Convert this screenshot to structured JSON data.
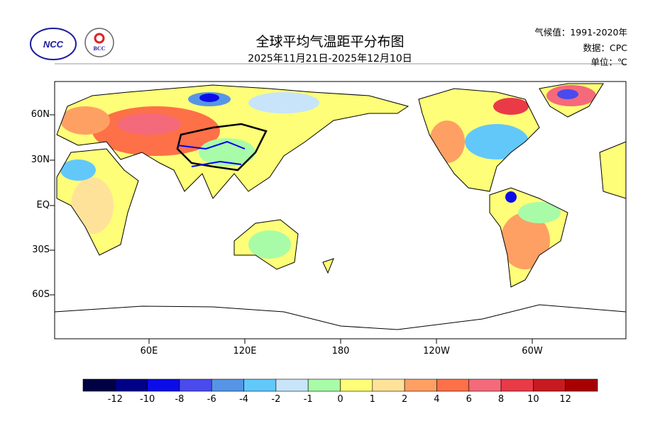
{
  "header": {
    "title": "全球平均气温距平分布图",
    "subtitle": "2025年11月21日-2025年12月10日",
    "climatology": "气候值：1991-2020年",
    "data_source": "数据：CPC",
    "unit": "单位：℃",
    "logo_left": "NCC",
    "logo_right": "BCC"
  },
  "map": {
    "lat_labels": [
      "60N",
      "30N",
      "EQ",
      "30S",
      "60S"
    ],
    "lon_labels": [
      "60E",
      "120E",
      "180",
      "120W",
      "60W"
    ]
  },
  "colorbar": {
    "colors": [
      "#000044",
      "#000088",
      "#0c0ce8",
      "#4a4aee",
      "#5695e6",
      "#62c8fa",
      "#c8e4fa",
      "#a8fca8",
      "#fefe78",
      "#fee29a",
      "#fea064",
      "#fe7048",
      "#f46a7a",
      "#ea3a48",
      "#c81a20",
      "#a80000"
    ],
    "labels": [
      "-12",
      "-10",
      "-8",
      "-6",
      "-4",
      "-2",
      "-1",
      "0",
      "1",
      "2",
      "4",
      "6",
      "8",
      "10",
      "12"
    ]
  }
}
